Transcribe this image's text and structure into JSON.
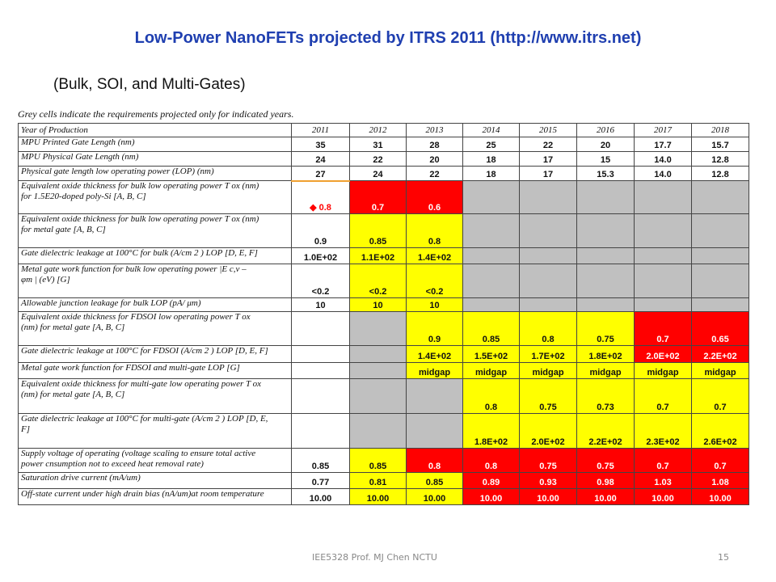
{
  "slide": {
    "title": "Low-Power NanoFETs projected by ITRS 2011 (http://www.itrs.net)",
    "subtitle": "(Bulk, SOI, and Multi-Gates)",
    "note": "Grey cells indicate the requirements projected only for indicated years.",
    "footer": "IEE5328 Prof. MJ Chen NCTU",
    "page_number": "15"
  },
  "table": {
    "header": {
      "label": "Year of Production",
      "years": [
        "2011",
        "2012",
        "2013",
        "2014",
        "2015",
        "2016",
        "2017",
        "2018"
      ]
    },
    "rows": [
      {
        "label": "MPU Printed Gate Length (nm)",
        "values": [
          "35",
          "31",
          "28",
          "25",
          "22",
          "20",
          "17.7",
          "15.7"
        ],
        "colors": [
          "w",
          "w",
          "w",
          "w",
          "w",
          "w",
          "w",
          "w"
        ]
      },
      {
        "label": "MPU Physical Gate Length (nm)",
        "values": [
          "24",
          "22",
          "20",
          "18",
          "17",
          "15",
          "14.0",
          "12.8"
        ],
        "colors": [
          "w",
          "w",
          "w",
          "w",
          "w",
          "w",
          "w",
          "w"
        ]
      },
      {
        "label": "Physical gate length low operating power (LOP) (nm)",
        "values": [
          "27",
          "24",
          "22",
          "18",
          "17",
          "15.3",
          "14.0",
          "12.8"
        ],
        "colors": [
          "w",
          "w",
          "w",
          "w",
          "w",
          "w",
          "w",
          "w"
        ]
      },
      {
        "label": "Equivalent oxide thickness for bulk low operating power T ox (nm)\nfor 1.5E20-doped poly-Si [A, B, C]",
        "values": [
          "0.8",
          "0.7",
          "0.6",
          "",
          "",
          "",
          "",
          ""
        ],
        "colors": [
          "wo",
          "r",
          "r",
          "g",
          "g",
          "g",
          "g",
          "g"
        ],
        "marker": "◆"
      },
      {
        "label": "Equivalent oxide thickness for bulk low operating power T ox (nm)\nfor metal gate [A, B, C]",
        "values": [
          "0.9",
          "0.85",
          "0.8",
          "",
          "",
          "",
          "",
          ""
        ],
        "colors": [
          "w",
          "y",
          "y",
          "g",
          "g",
          "g",
          "g",
          "g"
        ]
      },
      {
        "label": "Gate dielectric leakage at 100°C for bulk (A/cm 2 ) LOP [D, E, F]",
        "values": [
          "1.0E+02",
          "1.1E+02",
          "1.4E+02",
          "",
          "",
          "",
          "",
          ""
        ],
        "colors": [
          "w",
          "y",
          "y",
          "g",
          "g",
          "g",
          "g",
          "g"
        ]
      },
      {
        "label": "Metal gate work function for bulk low operating power |E c,v –\nφm | (eV) [G]",
        "values": [
          "<0.2",
          "<0.2",
          "<0.2",
          "",
          "",
          "",
          "",
          ""
        ],
        "colors": [
          "w",
          "y",
          "y",
          "g",
          "g",
          "g",
          "g",
          "g"
        ]
      },
      {
        "label": "Allowable junction leakage for bulk LOP (pA/ μm)",
        "values": [
          "10",
          "10",
          "10",
          "",
          "",
          "",
          "",
          ""
        ],
        "colors": [
          "w",
          "y",
          "y",
          "g",
          "g",
          "g",
          "g",
          "g"
        ]
      },
      {
        "label": "Equivalent oxide thickness for FDSOI low operating power T ox\n(nm) for metal gate [A, B, C]",
        "values": [
          "",
          "",
          "0.9",
          "0.85",
          "0.8",
          "0.75",
          "0.7",
          "0.65"
        ],
        "colors": [
          "w",
          "g",
          "y",
          "y",
          "y",
          "y",
          "r",
          "r"
        ]
      },
      {
        "label": "Gate dielectric leakage at 100°C for FDSOI (A/cm 2 ) LOP [D, E, F]",
        "values": [
          "",
          "",
          "1.4E+02",
          "1.5E+02",
          "1.7E+02",
          "1.8E+02",
          "2.0E+02",
          "2.2E+02"
        ],
        "colors": [
          "w",
          "g",
          "y",
          "y",
          "y",
          "y",
          "r",
          "r"
        ]
      },
      {
        "label": "Metal gate work function for FDSOI and multi-gate LOP [G]",
        "values": [
          "",
          "",
          "midgap",
          "midgap",
          "midgap",
          "midgap",
          "midgap",
          "midgap"
        ],
        "colors": [
          "w",
          "g",
          "y",
          "y",
          "y",
          "y",
          "y",
          "y"
        ]
      },
      {
        "label": "Equivalent oxide thickness for multi-gate low operating power T ox\n(nm) for metal gate [A, B, C]",
        "values": [
          "",
          "",
          "",
          "0.8",
          "0.75",
          "0.73",
          "0.7",
          "0.7"
        ],
        "colors": [
          "w",
          "g",
          "g",
          "y",
          "y",
          "y",
          "y",
          "y"
        ]
      },
      {
        "label": "Gate dielectric leakage at 100°C for multi-gate (A/cm 2 ) LOP [D, E,\nF]",
        "values": [
          "",
          "",
          "",
          "1.8E+02",
          "2.0E+02",
          "2.2E+02",
          "2.3E+02",
          "2.6E+02"
        ],
        "colors": [
          "w",
          "g",
          "g",
          "y",
          "y",
          "y",
          "y",
          "y"
        ]
      },
      {
        "label": "Supply voltage of operating (voltage scaling to ensure total active\npower cnsumption not to exceed heat removal rate)",
        "values": [
          "0.85",
          "0.85",
          "0.8",
          "0.8",
          "0.75",
          "0.75",
          "0.7",
          "0.7"
        ],
        "colors": [
          "w",
          "y",
          "r",
          "r",
          "r",
          "r",
          "r",
          "r"
        ]
      },
      {
        "label": "Saturation drive current (mA/um)",
        "values": [
          "0.77",
          "0.81",
          "0.85",
          "0.89",
          "0.93",
          "0.98",
          "1.03",
          "1.08"
        ],
        "colors": [
          "w",
          "y",
          "y",
          "r",
          "r",
          "r",
          "r",
          "r"
        ]
      },
      {
        "label": "Off-state current under high drain bias (nA/um)at room temperature",
        "values": [
          "10.00",
          "10.00",
          "10.00",
          "10.00",
          "10.00",
          "10.00",
          "10.00",
          "10.00"
        ],
        "colors": [
          "w",
          "y",
          "y",
          "r",
          "r",
          "r",
          "r",
          "r"
        ]
      }
    ]
  },
  "colors": {
    "yellow": "#ffff00",
    "red": "#ff0000",
    "grey": "#c0c0c0",
    "title_blue": "#1f3fb0"
  }
}
